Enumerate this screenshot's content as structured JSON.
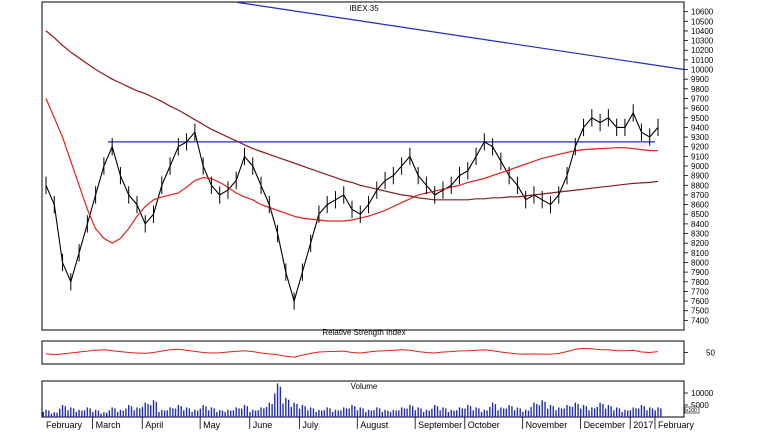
{
  "chart_data": {
    "type": "line",
    "title": "IBEX 35",
    "price_panel": {
      "series": [
        {
          "values": [
            8800,
            8600,
            8000,
            7800,
            8100,
            8400,
            8700,
            9000,
            9200,
            8900,
            8700,
            8600,
            8400,
            8500,
            8800,
            9000,
            9200,
            9250,
            9350,
            9000,
            8800,
            8700,
            8750,
            8850,
            9100,
            9000,
            8800,
            8600,
            8300,
            7900,
            7600,
            7900,
            8200,
            8500,
            8600,
            8650,
            8700,
            8550,
            8500,
            8600,
            8750,
            8850,
            8900,
            9000,
            9100,
            8900,
            8800,
            8700,
            8750,
            8800,
            8900,
            8950,
            9100,
            9250,
            9200,
            9050,
            8900,
            8800,
            8650,
            8700,
            8650,
            8600,
            8700,
            8900,
            9200,
            9400,
            9500,
            9450,
            9500,
            9400,
            9400,
            9550,
            9350,
            9300,
            9400
          ]
        },
        {
          "values": [
            9700,
            9500,
            9300,
            9050,
            8800,
            8550,
            8350,
            8250,
            8200,
            8250,
            8350,
            8480,
            8580,
            8650,
            8680,
            8700,
            8720,
            8780,
            8850,
            8880,
            8870,
            8830,
            8780,
            8720,
            8680,
            8650,
            8600,
            8570,
            8540,
            8510,
            8480,
            8460,
            8450,
            8440,
            8430,
            8430,
            8430,
            8440,
            8460,
            8480,
            8510,
            8540,
            8580,
            8620,
            8660,
            8700,
            8720,
            8740,
            8760,
            8780,
            8800,
            8830,
            8850,
            8870,
            8900,
            8930,
            8960,
            8990,
            9020,
            9050,
            9080,
            9100,
            9120,
            9140,
            9160,
            9170,
            9175,
            9180,
            9185,
            9190,
            9190,
            9180,
            9170,
            9160,
            9160
          ]
        },
        {
          "values": [
            10400,
            10330,
            10250,
            10180,
            10120,
            10060,
            10000,
            9950,
            9900,
            9860,
            9820,
            9780,
            9750,
            9710,
            9670,
            9620,
            9580,
            9530,
            9480,
            9430,
            9380,
            9340,
            9300,
            9260,
            9220,
            9180,
            9150,
            9120,
            9090,
            9060,
            9030,
            9000,
            8970,
            8940,
            8910,
            8880,
            8850,
            8830,
            8800,
            8780,
            8760,
            8740,
            8720,
            8700,
            8690,
            8670,
            8660,
            8650,
            8650,
            8650,
            8650,
            8650,
            8660,
            8660,
            8670,
            8670,
            8680,
            8680,
            8690,
            8700,
            8710,
            8720,
            8730,
            8740,
            8750,
            8760,
            8770,
            8780,
            8790,
            8800,
            8810,
            8820,
            8825,
            8830,
            8840
          ]
        }
      ],
      "trendlines": [
        {
          "from_value": 10700,
          "to_value": 10000
        },
        {
          "from_value": 9250,
          "to_value": 9250
        }
      ],
      "y_ticks": [
        "10600",
        "10500",
        "10400",
        "10300",
        "10200",
        "10100",
        "10000",
        "9900",
        "9800",
        "9700",
        "9600",
        "9500",
        "9400",
        "9300",
        "9200",
        "9100",
        "9000",
        "8900",
        "8800",
        "8700",
        "8600",
        "8500",
        "8400",
        "8300",
        "8200",
        "8100",
        "8000",
        "7900",
        "7800",
        "7700",
        "7600",
        "7500",
        "7400"
      ],
      "ylim": [
        7300,
        10700
      ]
    },
    "rsi_panel": {
      "title": "Relative Strength Index",
      "tick_label": "50",
      "values": [
        45,
        40,
        44,
        48,
        52,
        56,
        60,
        62,
        58,
        54,
        50,
        48,
        46,
        50,
        56,
        62,
        64,
        60,
        55,
        50,
        48,
        49,
        52,
        55,
        58,
        54,
        48,
        44,
        40,
        34,
        30,
        38,
        46,
        52,
        54,
        55,
        56,
        50,
        48,
        52,
        56,
        58,
        60,
        62,
        60,
        54,
        50,
        48,
        52,
        54,
        57,
        58,
        60,
        62,
        58,
        52,
        48,
        44,
        42,
        44,
        43,
        42,
        46,
        54,
        64,
        68,
        66,
        62,
        62,
        58,
        58,
        60,
        52,
        50,
        54
      ],
      "ylim": [
        0,
        100
      ]
    },
    "volume_panel": {
      "title": "Volume",
      "y_ticks": [
        "10000",
        "5000"
      ],
      "unit_label": "x100",
      "values": [
        3,
        2,
        5,
        4,
        3,
        4,
        3,
        2,
        4,
        3,
        5,
        4,
        6,
        7,
        3,
        4,
        5,
        4,
        3,
        5,
        4,
        3,
        3,
        4,
        5,
        3,
        4,
        6,
        14,
        8,
        6,
        5,
        4,
        3,
        4,
        3,
        4,
        5,
        4,
        3,
        4,
        3,
        3,
        4,
        5,
        4,
        3,
        5,
        4,
        3,
        4,
        5,
        4,
        3,
        6,
        4,
        5,
        4,
        3,
        6,
        7,
        5,
        4,
        5,
        6,
        5,
        4,
        6,
        5,
        4,
        3,
        4,
        5,
        4,
        4
      ],
      "ylim": [
        0,
        15
      ]
    },
    "x_labels": [
      "February",
      "March",
      "April",
      "May",
      "June",
      "July",
      "August",
      "September",
      "October",
      "November",
      "December",
      "2017",
      "February"
    ],
    "x_label_index": [
      0,
      6,
      12,
      19,
      25,
      31,
      38,
      45,
      51,
      58,
      65,
      71,
      74
    ],
    "colors": {
      "price": "#000000",
      "moving_average_short": "#e0201a",
      "moving_average_long": "#8b1a1a",
      "trendline": "#1f2bbf",
      "rsi": "#e0201a",
      "volume": "#1f2bbf",
      "axis": "#000000"
    }
  }
}
